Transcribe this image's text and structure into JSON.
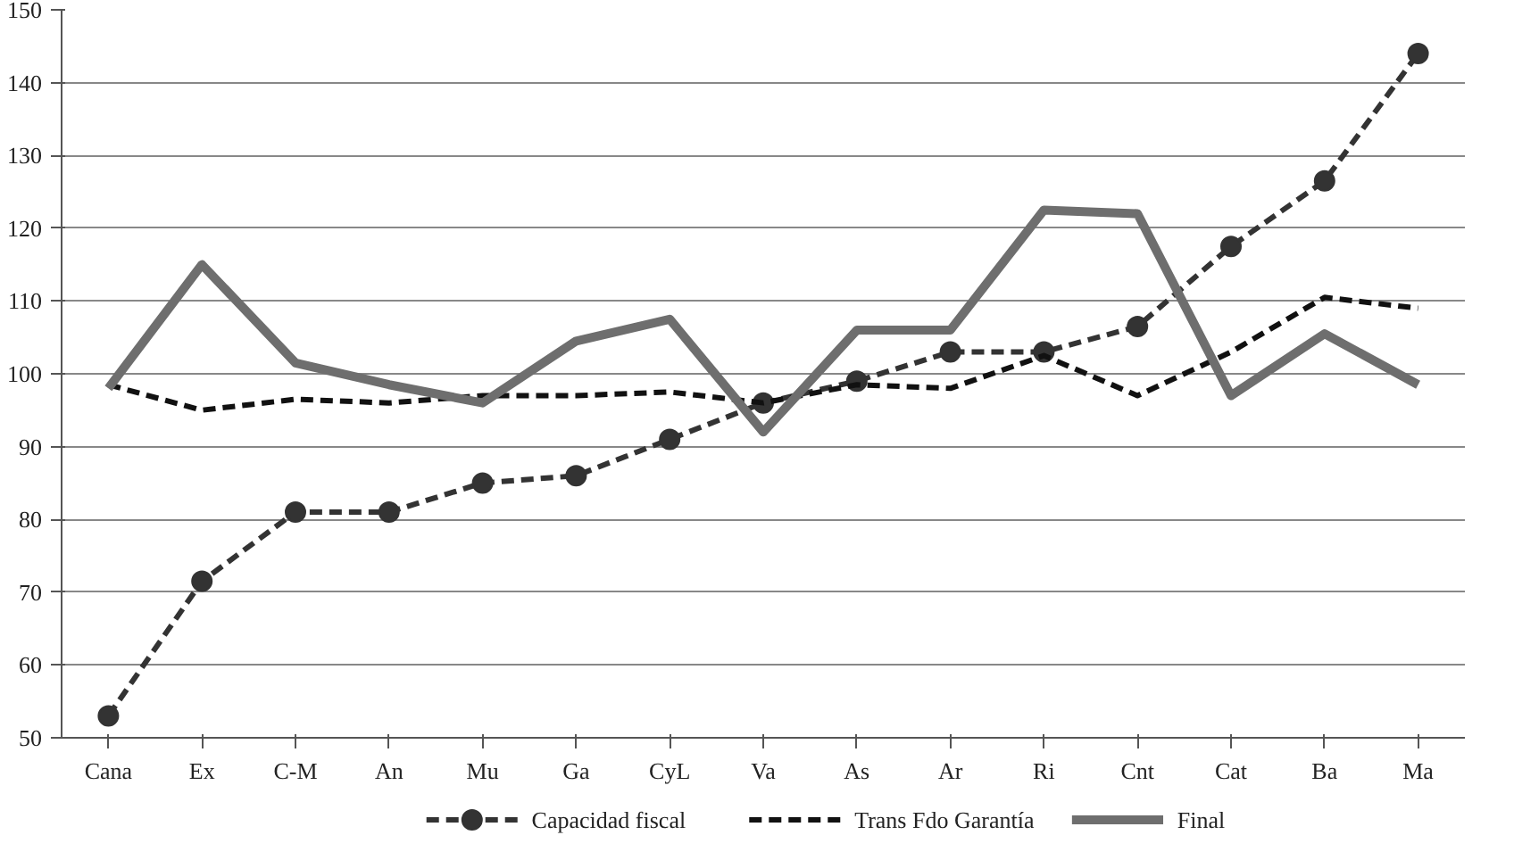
{
  "chart_data": {
    "type": "line",
    "categories": [
      "Cana",
      "Ex",
      "C-M",
      "An",
      "Mu",
      "Ga",
      "CyL",
      "Va",
      "As",
      "Ar",
      "Ri",
      "Cnt",
      "Cat",
      "Ba",
      "Ma"
    ],
    "series": [
      {
        "name": "Capacidad fiscal",
        "color": "#333333",
        "line_style": "dashed",
        "marker": "circle",
        "values": [
          53,
          71.5,
          81,
          81,
          85,
          86,
          91,
          96,
          99,
          103,
          103,
          106.5,
          117.5,
          126.5,
          144
        ]
      },
      {
        "name": "Trans Fdo Garantía",
        "color": "#111111",
        "line_style": "dashed",
        "marker": "none",
        "values": [
          98.5,
          95,
          96.5,
          96,
          97,
          97,
          97.5,
          96,
          98.5,
          98,
          102.5,
          97,
          103,
          110.5,
          109
        ]
      },
      {
        "name": "Final",
        "color": "#6e6e6e",
        "line_style": "solid",
        "marker": "none",
        "values": [
          98,
          115,
          101.5,
          98.5,
          96,
          104.5,
          107.5,
          92,
          106,
          106,
          122.5,
          122,
          97,
          105.5,
          98.5
        ]
      }
    ],
    "ylim": [
      50,
      150
    ],
    "yticks": [
      50,
      60,
      70,
      80,
      90,
      100,
      110,
      120,
      130,
      140,
      150
    ],
    "grid": "y",
    "legend": "bottom"
  }
}
